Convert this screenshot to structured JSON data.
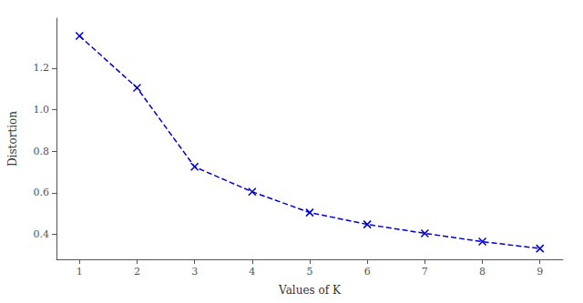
{
  "chart_data": {
    "type": "line",
    "x": [
      1,
      2,
      3,
      4,
      5,
      6,
      7,
      8,
      9
    ],
    "values": [
      1.355,
      1.105,
      0.725,
      0.605,
      0.505,
      0.448,
      0.405,
      0.365,
      0.332
    ],
    "color": "#0000cc",
    "marker": "x",
    "line_style": "dashed",
    "xlabel": "Values of K",
    "ylabel": "Distortion",
    "xlim": [
      0.6,
      9.4
    ],
    "ylim": [
      0.28,
      1.44
    ],
    "xticks": [
      1,
      2,
      3,
      4,
      5,
      6,
      7,
      8,
      9
    ],
    "yticks": [
      0.4,
      0.6,
      0.8,
      {
        "value": 1.0,
        "label": "1.0"
      },
      1.2
    ],
    "grid": false
  }
}
